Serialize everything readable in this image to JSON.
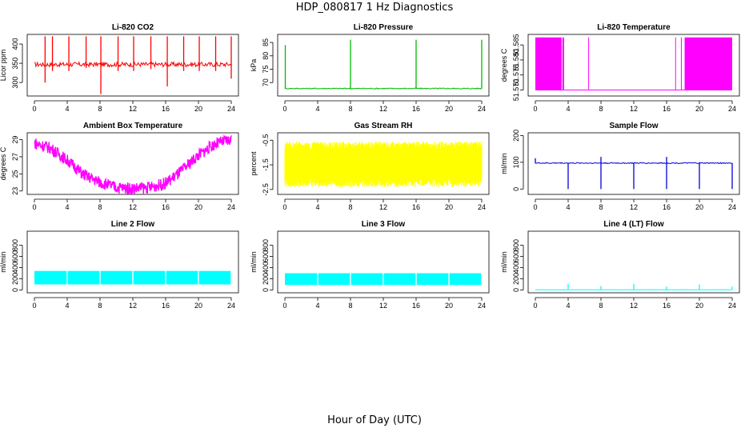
{
  "figure": {
    "title": "HDP_080817  1 Hz Diagnostics",
    "xlabel": "Hour of Day (UTC)"
  },
  "chart_data": [
    {
      "type": "line",
      "title": "Li-820 CO2",
      "ylabel": "Licor ppm",
      "color": "#ff0000",
      "xlim": [
        0,
        24
      ],
      "ylim": [
        265,
        425
      ],
      "xticks": [
        0,
        4,
        8,
        12,
        16,
        20,
        24
      ],
      "yticks": [
        300,
        350,
        400
      ],
      "baseline": 347,
      "noise": 6,
      "spikes": [
        [
          1.3,
          420,
          300
        ],
        [
          2.2,
          420,
          330
        ],
        [
          4.2,
          420,
          330
        ],
        [
          6.3,
          420,
          338
        ],
        [
          8.1,
          420,
          270
        ],
        [
          10.2,
          420,
          330
        ],
        [
          12.1,
          420,
          330
        ],
        [
          14.2,
          420,
          335
        ],
        [
          16.2,
          420,
          290
        ],
        [
          18.2,
          420,
          330
        ],
        [
          20.1,
          420,
          330
        ],
        [
          22.1,
          420,
          330
        ],
        [
          24.0,
          420,
          310
        ]
      ]
    },
    {
      "type": "line",
      "title": "Li-820 Pressure",
      "ylabel": "kPa",
      "color": "#00bb00",
      "xlim": [
        0,
        24
      ],
      "ylim": [
        65,
        88
      ],
      "xticks": [
        0,
        4,
        8,
        12,
        16,
        20,
        24
      ],
      "yticks": [
        70,
        75,
        80,
        85
      ],
      "baseline": 67.8,
      "noise": 0.2,
      "spikes": [
        [
          0.05,
          84,
          67.8
        ],
        [
          8.0,
          86,
          67.8
        ],
        [
          16.0,
          86,
          67.8
        ],
        [
          24.0,
          86,
          67.8
        ]
      ]
    },
    {
      "type": "area",
      "title": "Li-820 Temperature",
      "ylabel": "degrees C",
      "color": "#ff00ff",
      "xlim": [
        0,
        24
      ],
      "ylim": [
        51.568,
        51.5885
      ],
      "xticks": [
        0,
        4,
        8,
        12,
        16,
        20,
        24
      ],
      "yticks": [
        51.57,
        51.575,
        51.58,
        51.585
      ],
      "yticklabels": [
        "51.570",
        "51.575",
        "51.580",
        "51.585"
      ],
      "low": 51.57,
      "high": 51.5875,
      "filled_ranges": [
        [
          0,
          3.2
        ],
        [
          3.3,
          3.5
        ],
        [
          18.2,
          24
        ]
      ],
      "vlines": [
        6.5,
        17.1,
        17.8
      ]
    },
    {
      "type": "line",
      "title": "Ambient Box Temperature",
      "ylabel": "degrees C",
      "color": "#ff00ff",
      "xlim": [
        0,
        24
      ],
      "ylim": [
        22.6,
        29.8
      ],
      "xticks": [
        0,
        4,
        8,
        12,
        16,
        20,
        24
      ],
      "yticks": [
        23,
        25,
        27,
        29
      ],
      "x": [
        0,
        2,
        4,
        6,
        8,
        10,
        12,
        14,
        16,
        18,
        20,
        22,
        24
      ],
      "y": [
        28.6,
        28.0,
        26.6,
        24.9,
        24.0,
        23.4,
        23.3,
        23.4,
        23.9,
        25.4,
        27.2,
        28.5,
        29.0
      ],
      "band": 0.7
    },
    {
      "type": "line",
      "title": "Gas Stream RH",
      "ylabel": "percent",
      "color": "#ffff00",
      "xlim": [
        0,
        24
      ],
      "ylim": [
        -2.7,
        -0.2
      ],
      "xticks": [
        0,
        4,
        8,
        12,
        16,
        20,
        24
      ],
      "yticks": [
        -2.5,
        -1.5,
        -0.5
      ],
      "low": -2.4,
      "high": -0.55
    },
    {
      "type": "line",
      "title": "Sample Flow",
      "ylabel": "ml/min",
      "color": "#0000dd",
      "xlim": [
        0,
        24
      ],
      "ylim": [
        -20,
        210
      ],
      "xticks": [
        0,
        4,
        8,
        12,
        16,
        20,
        24
      ],
      "yticks": [
        0,
        100,
        200
      ],
      "baseline": 97,
      "noise": 2,
      "spikes": [
        [
          0.0,
          115,
          97
        ],
        [
          4.0,
          97,
          0
        ],
        [
          8.0,
          120,
          0
        ],
        [
          12.0,
          97,
          0
        ],
        [
          16.0,
          120,
          0
        ],
        [
          20.0,
          97,
          0
        ],
        [
          24.0,
          97,
          0
        ]
      ]
    },
    {
      "type": "area",
      "title": "Line 2 Flow",
      "ylabel": "ml/min",
      "color": "#00ffff",
      "xlim": [
        0,
        24
      ],
      "ylim": [
        -50,
        1050
      ],
      "xticks": [
        0,
        4,
        8,
        12,
        16,
        20,
        24
      ],
      "yticks": [
        0,
        200,
        400,
        600,
        800
      ],
      "low": 100,
      "high": 340,
      "gaps": [
        4,
        8,
        12,
        16,
        20,
        24
      ]
    },
    {
      "type": "area",
      "title": "Line 3 Flow",
      "ylabel": "ml/min",
      "color": "#00ffff",
      "xlim": [
        0,
        24
      ],
      "ylim": [
        -50,
        1050
      ],
      "xticks": [
        0,
        4,
        8,
        12,
        16,
        20,
        24
      ],
      "yticks": [
        0,
        200,
        400,
        600,
        800
      ],
      "low": 90,
      "high": 300,
      "gaps": [
        4,
        8,
        12,
        16,
        20,
        24
      ]
    },
    {
      "type": "line",
      "title": "Line 4 (LT) Flow",
      "ylabel": "ml/min",
      "color": "#00ffff",
      "xlim": [
        0,
        24
      ],
      "ylim": [
        -50,
        1050
      ],
      "xticks": [
        0,
        4,
        8,
        12,
        16,
        20,
        24
      ],
      "yticks": [
        0,
        200,
        400,
        600,
        800
      ],
      "baseline": 5,
      "noise": 2,
      "spikes": [
        [
          4.0,
          110,
          5
        ],
        [
          8.0,
          70,
          5
        ],
        [
          12.0,
          110,
          5
        ],
        [
          16.0,
          60,
          5
        ],
        [
          20.0,
          100,
          5
        ],
        [
          24.0,
          60,
          5
        ]
      ]
    }
  ]
}
